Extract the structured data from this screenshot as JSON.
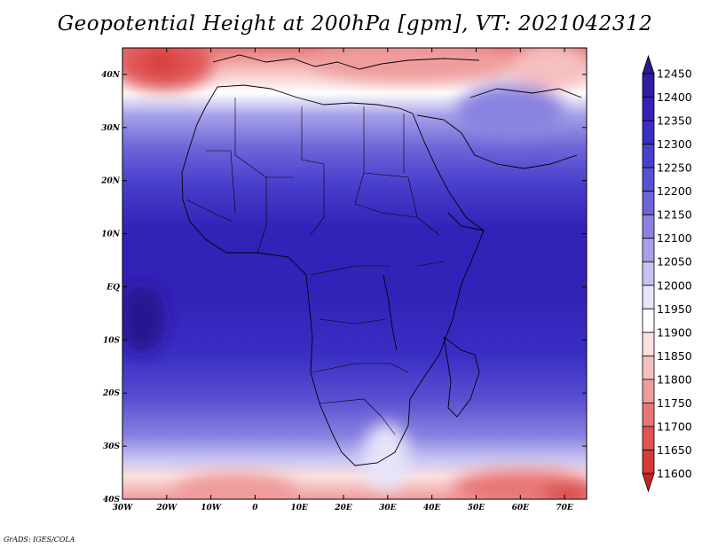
{
  "title": "Geopotential Height at 200hPa [gpm], VT: 2021042312",
  "credit": "GrADS: IGES/COLA",
  "map": {
    "lon_range": [
      -30,
      75
    ],
    "lat_range": [
      -40,
      45
    ],
    "lon_ticks": [
      "30W",
      "20W",
      "10W",
      "0",
      "10E",
      "20E",
      "30E",
      "40E",
      "50E",
      "60E",
      "70E"
    ],
    "lat_ticks": [
      "40S",
      "30S",
      "20S",
      "10S",
      "EQ",
      "10N",
      "20N",
      "30N",
      "40N"
    ]
  },
  "colorbar": {
    "levels": [
      "12450",
      "12400",
      "12350",
      "12300",
      "12250",
      "12200",
      "12150",
      "12100",
      "12050",
      "12000",
      "11950",
      "11900",
      "11850",
      "11800",
      "11750",
      "11700",
      "11650",
      "11600"
    ],
    "colors": [
      "#27198f",
      "#2d1ea5",
      "#3322b8",
      "#3a2ec4",
      "#4a3fcc",
      "#5a50d2",
      "#6e66d8",
      "#8982e0",
      "#a6a1e9",
      "#c6c3f2",
      "#e6e4fa",
      "#ffffff",
      "#fbe0e0",
      "#f5c0c0",
      "#ef9c9c",
      "#e87676",
      "#e05454",
      "#d63a3a",
      "#c82323"
    ]
  }
}
